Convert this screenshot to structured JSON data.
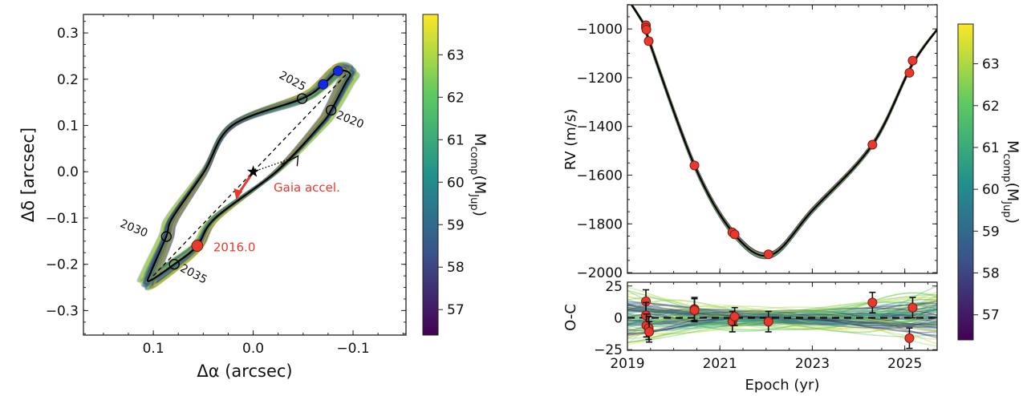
{
  "chart_data": [
    {
      "type": "scatter",
      "panel": "astrometric-orbit",
      "xlabel": "Δα (arcsec)",
      "ylabel": "Δδ [arcsec]",
      "xlim": [
        0.17,
        -0.153
      ],
      "ylim": [
        -0.353,
        0.34
      ],
      "x_inverted": true,
      "xticks": [
        0.1,
        0.0,
        -0.1
      ],
      "xtick_labels": [
        "0.1",
        "0.0",
        "−0.1"
      ],
      "yticks": [
        0.3,
        0.2,
        0.1,
        0.0,
        -0.1,
        -0.2,
        -0.3
      ],
      "ytick_labels": [
        "0.3",
        "0.2",
        "0.1",
        "0.0",
        "−0.1",
        "−0.2",
        "−0.3"
      ],
      "orbit_best_fit": [
        [
          -0.097,
          0.212
        ],
        [
          -0.085,
          0.218
        ],
        [
          -0.07,
          0.189
        ],
        [
          -0.049,
          0.158
        ],
        [
          0.021,
          0.1
        ],
        [
          0.049,
          0.0
        ],
        [
          0.081,
          -0.1
        ],
        [
          0.087,
          -0.14
        ],
        [
          0.102,
          -0.215
        ],
        [
          0.104,
          -0.236
        ],
        [
          0.079,
          -0.2
        ],
        [
          0.056,
          -0.16
        ],
        [
          0.038,
          -0.1
        ],
        [
          -0.023,
          0.0
        ],
        [
          -0.067,
          0.1
        ],
        [
          -0.078,
          0.133
        ],
        [
          -0.092,
          0.19
        ]
      ],
      "line_of_nodes": [
        [
          0.1,
          -0.225
        ],
        [
          -0.093,
          0.21
        ]
      ],
      "epoch_markers": [
        {
          "label": "2025",
          "x": -0.049,
          "y": 0.158
        },
        {
          "label": "2020",
          "x": -0.078,
          "y": 0.133
        },
        {
          "label": "2030",
          "x": 0.087,
          "y": -0.14
        },
        {
          "label": "2035",
          "x": 0.079,
          "y": -0.2
        }
      ],
      "measured_positions": [
        {
          "x": -0.07,
          "y": 0.189
        },
        {
          "x": -0.085,
          "y": 0.218
        }
      ],
      "highlight_point": {
        "label": "2016.0",
        "x": 0.056,
        "y": -0.16
      },
      "host_star": {
        "x": 0.0,
        "y": 0.0
      },
      "gaia_acceleration": {
        "label": "Gaia accel.",
        "from": [
          0.0,
          0.0
        ],
        "to": [
          0.017,
          -0.06
        ]
      },
      "colors": {
        "highlight": "#e8392c",
        "measured": "#1428e6",
        "orbit": "#000000"
      }
    },
    {
      "type": "line",
      "panel": "radial-velocity",
      "xlabel": "Epoch (yr)",
      "ylabel": "RV (m/s)",
      "xlim": [
        2019.0,
        2025.7
      ],
      "ylim": [
        -2003,
        -901
      ],
      "xticks": [
        2019,
        2021,
        2023,
        2025
      ],
      "xtick_labels": [
        "2019",
        "2021",
        "2023",
        "2025"
      ],
      "yticks": [
        -1000,
        -1200,
        -1400,
        -1600,
        -1800,
        -2000
      ],
      "ytick_labels": [
        "−1000",
        "−1200",
        "−1400",
        "−1600",
        "−1800",
        "−2000"
      ],
      "model_curve": [
        [
          2018.95,
          -860
        ],
        [
          2019.4,
          -995
        ],
        [
          2019.47,
          -1050
        ],
        [
          2020.45,
          -1560
        ],
        [
          2021.3,
          -1840
        ],
        [
          2022.1,
          -1928
        ],
        [
          2023.0,
          -1745
        ],
        [
          2024.3,
          -1475
        ],
        [
          2025.15,
          -1150
        ],
        [
          2025.75,
          -990
        ]
      ],
      "points": [
        [
          2019.4,
          -985
        ],
        [
          2019.4,
          -995
        ],
        [
          2019.41,
          -1003
        ],
        [
          2019.46,
          -1050
        ],
        [
          2020.45,
          -1560
        ],
        [
          2021.27,
          -1835
        ],
        [
          2021.32,
          -1843
        ],
        [
          2022.05,
          -1925
        ],
        [
          2024.3,
          -1475
        ],
        [
          2025.1,
          -1180
        ],
        [
          2025.17,
          -1130
        ]
      ]
    },
    {
      "type": "scatter",
      "panel": "residuals",
      "ylabel": "O-C",
      "xlim": [
        2019.0,
        2025.7
      ],
      "ylim": [
        -25.5,
        28
      ],
      "yticks": [
        25,
        0,
        -25
      ],
      "ytick_labels": [
        "25",
        "0",
        "−25"
      ],
      "points": [
        [
          2019.4,
          13,
          9
        ],
        [
          2019.4,
          2,
          10
        ],
        [
          2019.41,
          -6,
          9
        ],
        [
          2019.46,
          -8,
          9
        ],
        [
          2019.47,
          -11,
          8
        ],
        [
          2020.45,
          7,
          9
        ],
        [
          2020.45,
          6,
          9
        ],
        [
          2021.27,
          -3,
          8
        ],
        [
          2021.32,
          1,
          7
        ],
        [
          2022.05,
          -3,
          8
        ],
        [
          2024.3,
          12,
          8
        ],
        [
          2025.1,
          -16,
          8
        ],
        [
          2025.17,
          8,
          8
        ]
      ],
      "zero_line": 0
    }
  ],
  "colorbar": {
    "label_main": "M",
    "label_sub": "comp",
    "label_paren_main": "(M",
    "label_paren_sub": "Jup",
    "label_close": ")",
    "range": [
      56.4,
      63.95
    ],
    "ticks": [
      57,
      58,
      59,
      60,
      61,
      62,
      63
    ],
    "tick_labels": [
      "57",
      "58",
      "59",
      "60",
      "61",
      "62",
      "63"
    ],
    "colormap": "viridis",
    "colormap_stops": [
      "#440154",
      "#3b528b",
      "#21918c",
      "#5ec962",
      "#fde725"
    ]
  }
}
